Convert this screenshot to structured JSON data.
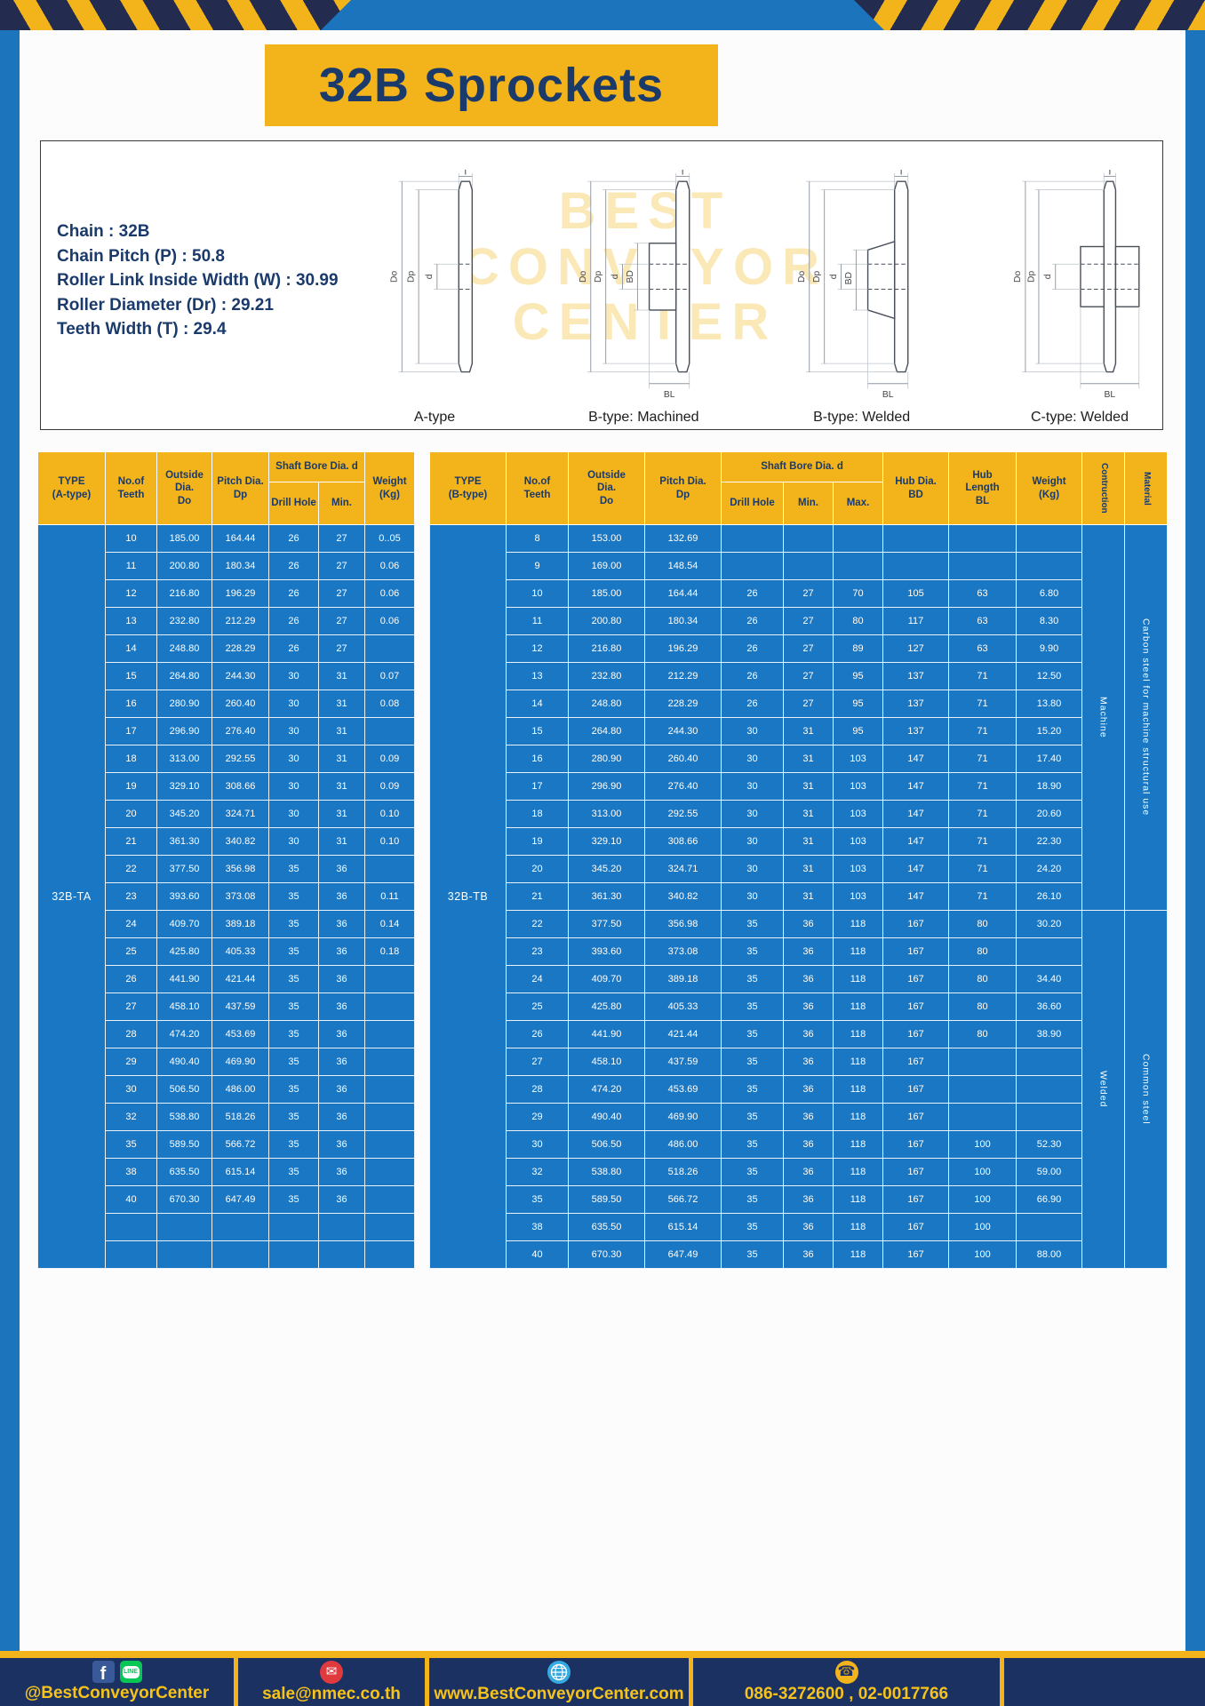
{
  "page": {
    "title": "32B Sprockets"
  },
  "colors": {
    "accent_yellow": "#F2B31B",
    "frame_blue": "#1B74BC",
    "table_cell_blue": "#1977C3",
    "navy_text": "#1A3A6B",
    "footer_navy": "#1B3162"
  },
  "specs": {
    "lines": [
      "Chain : 32B",
      "Chain Pitch (P) : 50.8",
      "Roller Link Inside Width (W) : 30.99",
      "Roller Diameter (Dr) : 29.21",
      "Teeth Width (T) : 29.4"
    ]
  },
  "diagrams": {
    "watermark": "BEST\nCONVEYOR\nCENTER",
    "labels": [
      "A-type",
      "B-type: Machined",
      "B-type: Welded",
      "C-type: Welded"
    ],
    "dims": {
      "t": "T",
      "do": "Do",
      "dp": "Dp",
      "d": "d",
      "bd": "BD",
      "bl": "BL"
    }
  },
  "tables": [
    {
      "target": "tbody-a",
      "type_label": "32B-TA",
      "type_cell_name": "type-a-cell",
      "headers": {
        "type": "TYPE\n(A-type)",
        "teeth": "No.of\nTeeth",
        "outside": "Outside\nDia.\nDo",
        "pitch": "Pitch Dia.\nDp",
        "shaft_group": "Shaft Bore Dia. d",
        "drill": "Drill Hole",
        "min": "Min.",
        "weight": "Weight\n(Kg)"
      },
      "rows": [
        [
          "10",
          "185.00",
          "164.44",
          "26",
          "27",
          "0..05"
        ],
        [
          "11",
          "200.80",
          "180.34",
          "26",
          "27",
          "0.06"
        ],
        [
          "12",
          "216.80",
          "196.29",
          "26",
          "27",
          "0.06"
        ],
        [
          "13",
          "232.80",
          "212.29",
          "26",
          "27",
          "0.06"
        ],
        [
          "14",
          "248.80",
          "228.29",
          "26",
          "27",
          ""
        ],
        [
          "15",
          "264.80",
          "244.30",
          "30",
          "31",
          "0.07"
        ],
        [
          "16",
          "280.90",
          "260.40",
          "30",
          "31",
          "0.08"
        ],
        [
          "17",
          "296.90",
          "276.40",
          "30",
          "31",
          ""
        ],
        [
          "18",
          "313.00",
          "292.55",
          "30",
          "31",
          "0.09"
        ],
        [
          "19",
          "329.10",
          "308.66",
          "30",
          "31",
          "0.09"
        ],
        [
          "20",
          "345.20",
          "324.71",
          "30",
          "31",
          "0.10"
        ],
        [
          "21",
          "361.30",
          "340.82",
          "30",
          "31",
          "0.10"
        ],
        [
          "22",
          "377.50",
          "356.98",
          "35",
          "36",
          ""
        ],
        [
          "23",
          "393.60",
          "373.08",
          "35",
          "36",
          "0.11"
        ],
        [
          "24",
          "409.70",
          "389.18",
          "35",
          "36",
          "0.14"
        ],
        [
          "25",
          "425.80",
          "405.33",
          "35",
          "36",
          "0.18"
        ],
        [
          "26",
          "441.90",
          "421.44",
          "35",
          "36",
          ""
        ],
        [
          "27",
          "458.10",
          "437.59",
          "35",
          "36",
          ""
        ],
        [
          "28",
          "474.20",
          "453.69",
          "35",
          "36",
          ""
        ],
        [
          "29",
          "490.40",
          "469.90",
          "35",
          "36",
          ""
        ],
        [
          "30",
          "506.50",
          "486.00",
          "35",
          "36",
          ""
        ],
        [
          "32",
          "538.80",
          "518.26",
          "35",
          "36",
          ""
        ],
        [
          "35",
          "589.50",
          "566.72",
          "35",
          "36",
          ""
        ],
        [
          "38",
          "635.50",
          "615.14",
          "35",
          "36",
          ""
        ],
        [
          "40",
          "670.30",
          "647.49",
          "35",
          "36",
          ""
        ],
        [
          "",
          "",
          "",
          "",
          "",
          ""
        ],
        [
          "",
          "",
          "",
          "",
          "",
          ""
        ]
      ],
      "span_cols": []
    },
    {
      "target": "tbody-b",
      "type_label": "32B-TB",
      "type_cell_name": "type-b-cell",
      "headers": {
        "type": "TYPE\n(B-type)",
        "teeth": "No.of\nTeeth",
        "outside": "Outside\nDia.\nDo",
        "pitch": "Pitch Dia.\nDp",
        "shaft_group": "Shaft Bore Dia. d",
        "drill": "Drill Hole",
        "min": "Min.",
        "max": "Max.",
        "hub_dia": "Hub Dia.\nBD",
        "hub_len": "Hub\nLength\nBL",
        "weight": "Weight\n(Kg)",
        "construction": "Contruction",
        "material": "Material"
      },
      "rows": [
        [
          "8",
          "153.00",
          "132.69",
          "",
          "",
          "",
          "",
          "",
          ""
        ],
        [
          "9",
          "169.00",
          "148.54",
          "",
          "",
          "",
          "",
          "",
          ""
        ],
        [
          "10",
          "185.00",
          "164.44",
          "26",
          "27",
          "70",
          "105",
          "63",
          "6.80"
        ],
        [
          "11",
          "200.80",
          "180.34",
          "26",
          "27",
          "80",
          "117",
          "63",
          "8.30"
        ],
        [
          "12",
          "216.80",
          "196.29",
          "26",
          "27",
          "89",
          "127",
          "63",
          "9.90"
        ],
        [
          "13",
          "232.80",
          "212.29",
          "26",
          "27",
          "95",
          "137",
          "71",
          "12.50"
        ],
        [
          "14",
          "248.80",
          "228.29",
          "26",
          "27",
          "95",
          "137",
          "71",
          "13.80"
        ],
        [
          "15",
          "264.80",
          "244.30",
          "30",
          "31",
          "95",
          "137",
          "71",
          "15.20"
        ],
        [
          "16",
          "280.90",
          "260.40",
          "30",
          "31",
          "103",
          "147",
          "71",
          "17.40"
        ],
        [
          "17",
          "296.90",
          "276.40",
          "30",
          "31",
          "103",
          "147",
          "71",
          "18.90"
        ],
        [
          "18",
          "313.00",
          "292.55",
          "30",
          "31",
          "103",
          "147",
          "71",
          "20.60"
        ],
        [
          "19",
          "329.10",
          "308.66",
          "30",
          "31",
          "103",
          "147",
          "71",
          "22.30"
        ],
        [
          "20",
          "345.20",
          "324.71",
          "30",
          "31",
          "103",
          "147",
          "71",
          "24.20"
        ],
        [
          "21",
          "361.30",
          "340.82",
          "30",
          "31",
          "103",
          "147",
          "71",
          "26.10"
        ],
        [
          "22",
          "377.50",
          "356.98",
          "35",
          "36",
          "118",
          "167",
          "80",
          "30.20"
        ],
        [
          "23",
          "393.60",
          "373.08",
          "35",
          "36",
          "118",
          "167",
          "80",
          ""
        ],
        [
          "24",
          "409.70",
          "389.18",
          "35",
          "36",
          "118",
          "167",
          "80",
          "34.40"
        ],
        [
          "25",
          "425.80",
          "405.33",
          "35",
          "36",
          "118",
          "167",
          "80",
          "36.60"
        ],
        [
          "26",
          "441.90",
          "421.44",
          "35",
          "36",
          "118",
          "167",
          "80",
          "38.90"
        ],
        [
          "27",
          "458.10",
          "437.59",
          "35",
          "36",
          "118",
          "167",
          "",
          ""
        ],
        [
          "28",
          "474.20",
          "453.69",
          "35",
          "36",
          "118",
          "167",
          "",
          ""
        ],
        [
          "29",
          "490.40",
          "469.90",
          "35",
          "36",
          "118",
          "167",
          "",
          ""
        ],
        [
          "30",
          "506.50",
          "486.00",
          "35",
          "36",
          "118",
          "167",
          "100",
          "52.30"
        ],
        [
          "32",
          "538.80",
          "518.26",
          "35",
          "36",
          "118",
          "167",
          "100",
          "59.00"
        ],
        [
          "35",
          "589.50",
          "566.72",
          "35",
          "36",
          "118",
          "167",
          "100",
          "66.90"
        ],
        [
          "38",
          "635.50",
          "615.14",
          "35",
          "36",
          "118",
          "167",
          "100",
          ""
        ],
        [
          "40",
          "670.30",
          "647.49",
          "35",
          "36",
          "118",
          "167",
          "100",
          "88.00"
        ]
      ],
      "span_cols": [
        {
          "name": "construction-cell",
          "groups": [
            {
              "start": 0,
              "span": 14,
              "label": "Machine"
            },
            {
              "start": 14,
              "span": 13,
              "label": "Welded"
            }
          ]
        },
        {
          "name": "material-cell",
          "groups": [
            {
              "start": 0,
              "span": 14,
              "label": "Carbon steel for machine structural use"
            },
            {
              "start": 14,
              "span": 13,
              "label": "Common steel"
            }
          ]
        }
      ]
    }
  ],
  "footer": {
    "social": "@BestConveyorCenter",
    "email": "sale@nmec.co.th",
    "website": "www.BestConveyorCenter.com",
    "phones": "086-3272600 , 02-0017766",
    "icons": {
      "facebook_glyph": "f",
      "line_label": "LINE",
      "email_glyph": "✉",
      "phone_glyph": "☎"
    }
  }
}
